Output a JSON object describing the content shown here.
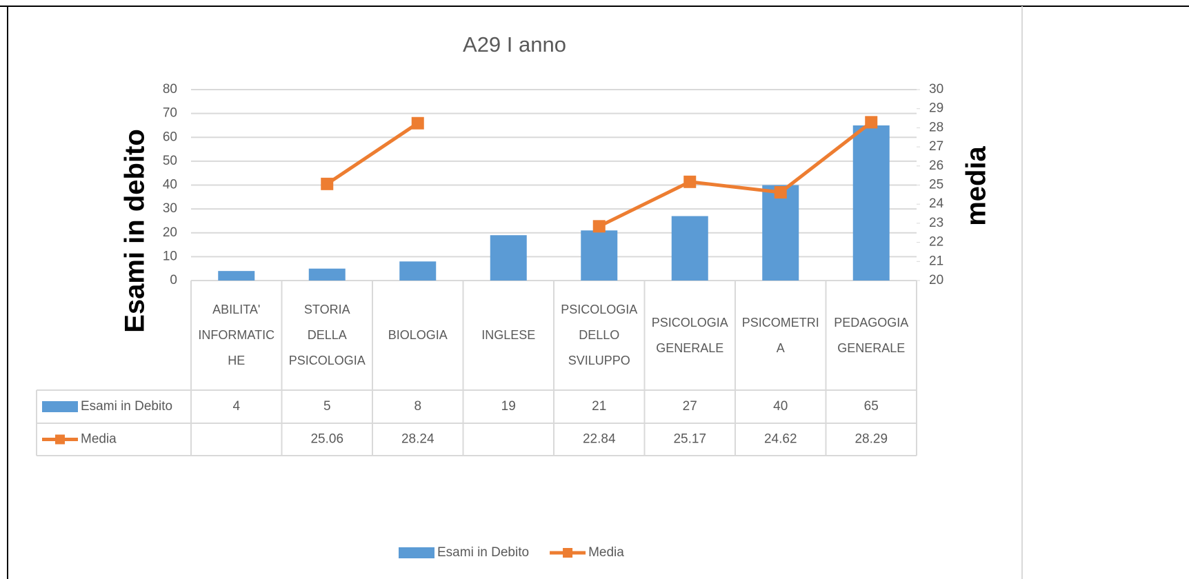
{
  "chart_data": {
    "type": "combo",
    "title": "A29 I anno",
    "ylabel": "Esami in debito",
    "y2label": "media",
    "categories": [
      "ABILITA' INFORMATICHE",
      "STORIA DELLA PSICOLOGIA",
      "BIOLOGIA",
      "INGLESE",
      "PSICOLOGIA DELLO SVILUPPO",
      "PSICOLOGIA GENERALE",
      "PSICOMETRIA",
      "PEDAGOGIA GENERALE"
    ],
    "series": [
      {
        "name": "Esami in Debito",
        "type": "bar",
        "color": "#5b9bd5",
        "values": [
          4,
          5,
          8,
          19,
          21,
          27,
          40,
          65
        ]
      },
      {
        "name": "Media",
        "type": "line",
        "axis": "y2",
        "color": "#ed7d31",
        "values": [
          null,
          25.06,
          28.24,
          null,
          22.84,
          25.17,
          24.62,
          28.29
        ]
      }
    ],
    "ylim": [
      0,
      80
    ],
    "yticks": [
      0,
      10,
      20,
      30,
      40,
      50,
      60,
      70,
      80
    ],
    "y2lim": [
      20,
      30
    ],
    "y2ticks": [
      20,
      21,
      22,
      23,
      24,
      25,
      26,
      27,
      28,
      29,
      30
    ],
    "grid": true,
    "legend": "bottom",
    "data_table": true
  }
}
